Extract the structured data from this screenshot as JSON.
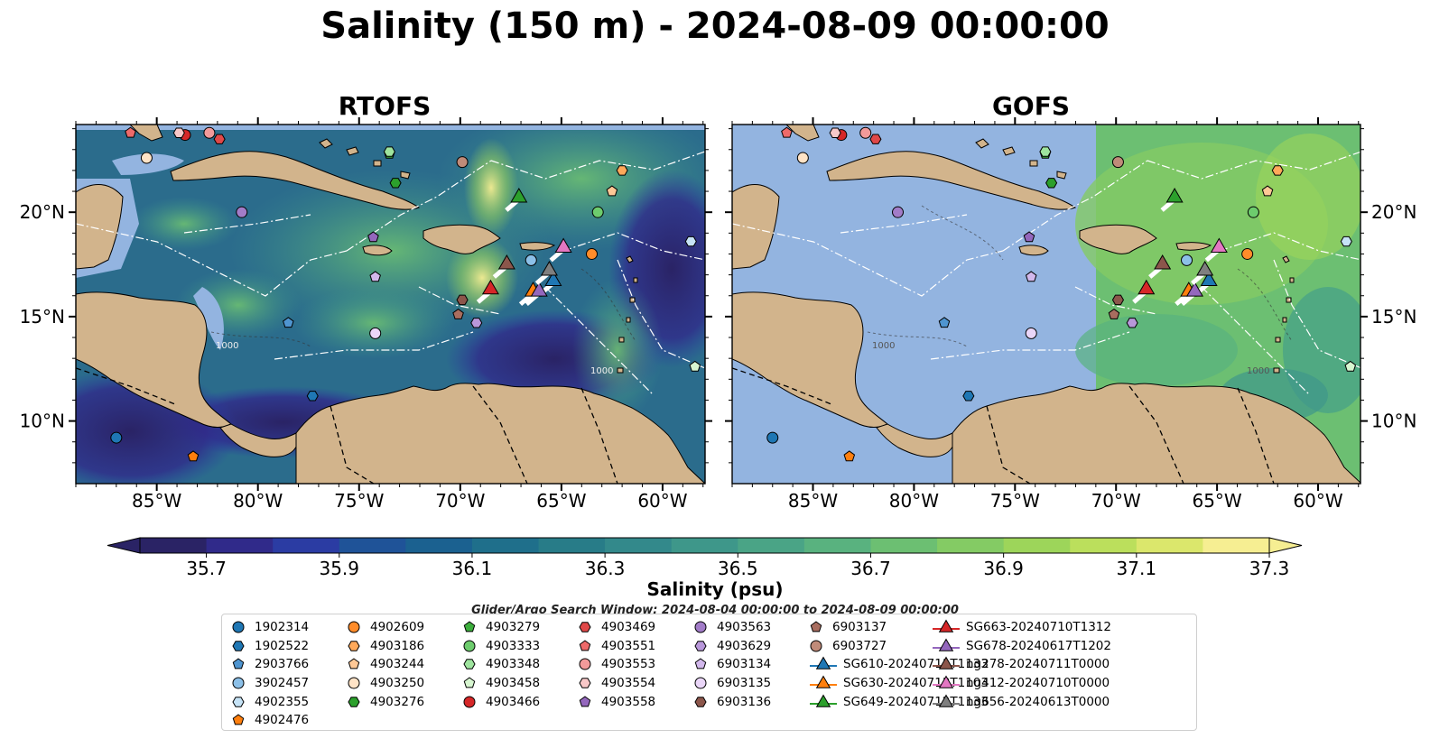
{
  "title": "Salinity (150 m) - 2024-08-09 00:00:00",
  "panels": [
    {
      "name": "RTOFS"
    },
    {
      "name": "GOFS"
    }
  ],
  "lon_labels": [
    "85°W",
    "80°W",
    "75°W",
    "70°W",
    "65°W",
    "60°W"
  ],
  "lat_labels": [
    "20°N",
    "15°N",
    "10°N"
  ],
  "contour_labels": [
    "1000",
    "1000",
    "1000",
    "1000"
  ],
  "colorbar": {
    "label": "Salinity (psu)",
    "tick_labels": [
      "35.7",
      "35.9",
      "36.1",
      "36.3",
      "36.5",
      "36.7",
      "36.9",
      "37.1",
      "37.3"
    ],
    "colors": [
      "#2a2365",
      "#302a8a",
      "#2b3ca3",
      "#1f5398",
      "#1b6190",
      "#1f6f8b",
      "#287c88",
      "#33898b",
      "#3e978a",
      "#4aa486",
      "#59b27f",
      "#6cbf72",
      "#84cb64",
      "#9dd55a",
      "#bbdf5c",
      "#dbe76c",
      "#f6ee92"
    ]
  },
  "search_window": "Glider/Argo Search Window: 2024-08-04 00:00:00 to 2024-08-09 00:00:00",
  "legend": [
    {
      "label": "1902314",
      "marker": "circle",
      "color": "#1f77b4"
    },
    {
      "label": "1902522",
      "marker": "hexagon",
      "color": "#1f77b4"
    },
    {
      "label": "2903766",
      "marker": "pentagon",
      "color": "#4f95d0"
    },
    {
      "label": "3902457",
      "marker": "circle",
      "color": "#8cc0e8"
    },
    {
      "label": "4902355",
      "marker": "hexagon",
      "color": "#c6e3f6"
    },
    {
      "label": "4902476",
      "marker": "pentagon",
      "color": "#ff7f0e"
    },
    {
      "label": "4902609",
      "marker": "circle",
      "color": "#ff8c2a"
    },
    {
      "label": "4903186",
      "marker": "hexagon",
      "color": "#ffa95a"
    },
    {
      "label": "4903244",
      "marker": "pentagon",
      "color": "#ffc896"
    },
    {
      "label": "4903250",
      "marker": "circle",
      "color": "#ffe3c6"
    },
    {
      "label": "4903276",
      "marker": "hexagon",
      "color": "#2ca02c"
    },
    {
      "label": "4903279",
      "marker": "pentagon",
      "color": "#3cae3c"
    },
    {
      "label": "4903333",
      "marker": "circle",
      "color": "#6dcc6d"
    },
    {
      "label": "4903348",
      "marker": "hexagon",
      "color": "#9ee49e"
    },
    {
      "label": "4903458",
      "marker": "pentagon",
      "color": "#d7f6d0"
    },
    {
      "label": "4903466",
      "marker": "circle",
      "color": "#d62728"
    },
    {
      "label": "4903469",
      "marker": "hexagon",
      "color": "#e04848"
    },
    {
      "label": "4903551",
      "marker": "pentagon",
      "color": "#ee6a6a"
    },
    {
      "label": "4903553",
      "marker": "circle",
      "color": "#f29a9a"
    },
    {
      "label": "4903554",
      "marker": "hexagon",
      "color": "#f8c8c8"
    },
    {
      "label": "4903558",
      "marker": "pentagon",
      "color": "#9467bd"
    },
    {
      "label": "4903563",
      "marker": "circle",
      "color": "#a27cc8"
    },
    {
      "label": "4903629",
      "marker": "hexagon",
      "color": "#b897da"
    },
    {
      "label": "6903134",
      "marker": "pentagon",
      "color": "#d2b8ec"
    },
    {
      "label": "6903135",
      "marker": "circle",
      "color": "#ead6f8"
    },
    {
      "label": "6903136",
      "marker": "hexagon",
      "color": "#8c564b"
    },
    {
      "label": "6903137",
      "marker": "pentagon",
      "color": "#a86d5f"
    },
    {
      "label": "6903727",
      "marker": "circle",
      "color": "#c08b79"
    },
    {
      "label": "SG610-20240711T1133",
      "marker": "triangle",
      "color": "#1f77b4"
    },
    {
      "label": "SG630-20240713T1103",
      "marker": "triangle",
      "color": "#ff7f0e"
    },
    {
      "label": "SG649-20240712T1133",
      "marker": "triangle",
      "color": "#2ca02c"
    },
    {
      "label": "SG663-20240710T1312",
      "marker": "triangle",
      "color": "#d62728"
    },
    {
      "label": "SG678-20240617T1202",
      "marker": "triangle",
      "color": "#9467bd"
    },
    {
      "label": "ng278-20240711T0000",
      "marker": "triangle",
      "color": "#8c564b"
    },
    {
      "label": "ng412-20240710T0000",
      "marker": "triangle",
      "color": "#e377c2"
    },
    {
      "label": "ng656-20240613T0000",
      "marker": "triangle",
      "color": "#7f7f7f"
    }
  ],
  "map_points": [
    {
      "id": "1902314",
      "lon": -87.0,
      "lat": 9.2
    },
    {
      "id": "1902522",
      "lon": -77.3,
      "lat": 11.2
    },
    {
      "id": "2903766",
      "lon": -78.5,
      "lat": 14.7
    },
    {
      "id": "3902457",
      "lon": -66.5,
      "lat": 17.7
    },
    {
      "id": "4902355",
      "lon": -58.6,
      "lat": 18.6
    },
    {
      "id": "4902476",
      "lon": -83.2,
      "lat": 8.3
    },
    {
      "id": "4902609",
      "lon": -63.5,
      "lat": 18.0
    },
    {
      "id": "4903186",
      "lon": -62.0,
      "lat": 22.0
    },
    {
      "id": "4903244",
      "lon": -62.5,
      "lat": 21.0
    },
    {
      "id": "4903250",
      "lon": -85.5,
      "lat": 22.6
    },
    {
      "id": "4903276",
      "lon": -73.2,
      "lat": 21.4
    },
    {
      "id": "4903279",
      "lon": -73.5,
      "lat": 22.8
    },
    {
      "id": "4903333",
      "lon": -63.2,
      "lat": 20.0
    },
    {
      "id": "4903348",
      "lon": -73.5,
      "lat": 22.9
    },
    {
      "id": "4903458",
      "lon": -58.4,
      "lat": 12.6
    },
    {
      "id": "4903466",
      "lon": -83.6,
      "lat": 23.7
    },
    {
      "id": "4903469",
      "lon": -81.9,
      "lat": 23.5
    },
    {
      "id": "4903551",
      "lon": -86.3,
      "lat": 23.8
    },
    {
      "id": "4903553",
      "lon": -82.4,
      "lat": 23.8
    },
    {
      "id": "4903554",
      "lon": -83.9,
      "lat": 23.8
    },
    {
      "id": "4903558",
      "lon": -74.3,
      "lat": 18.8
    },
    {
      "id": "4903563",
      "lon": -80.8,
      "lat": 20.0
    },
    {
      "id": "4903629",
      "lon": -69.2,
      "lat": 14.7
    },
    {
      "id": "6903134",
      "lon": -74.2,
      "lat": 16.9
    },
    {
      "id": "6903135",
      "lon": -74.2,
      "lat": 14.2
    },
    {
      "id": "6903136",
      "lon": -69.9,
      "lat": 15.8
    },
    {
      "id": "6903137",
      "lon": -70.1,
      "lat": 15.1
    },
    {
      "id": "6903727",
      "lon": -69.9,
      "lat": 22.4
    },
    {
      "id": "SG610-20240711T1133",
      "lon": -65.4,
      "lat": 16.7,
      "glider": true
    },
    {
      "id": "SG630-20240713T1103",
      "lon": -66.4,
      "lat": 16.2,
      "glider": true
    },
    {
      "id": "SG649-20240712T1133",
      "lon": -67.1,
      "lat": 20.7,
      "glider": true
    },
    {
      "id": "SG663-20240710T1312",
      "lon": -68.5,
      "lat": 16.3,
      "glider": true
    },
    {
      "id": "SG678-20240617T1202",
      "lon": -66.1,
      "lat": 16.2,
      "glider": true
    },
    {
      "id": "ng278-20240711T0000",
      "lon": -67.7,
      "lat": 17.5,
      "glider": true
    },
    {
      "id": "ng412-20240710T0000",
      "lon": -64.9,
      "lat": 18.3,
      "glider": true
    },
    {
      "id": "ng656-20240613T0000",
      "lon": -65.6,
      "lat": 17.2,
      "glider": true
    }
  ]
}
